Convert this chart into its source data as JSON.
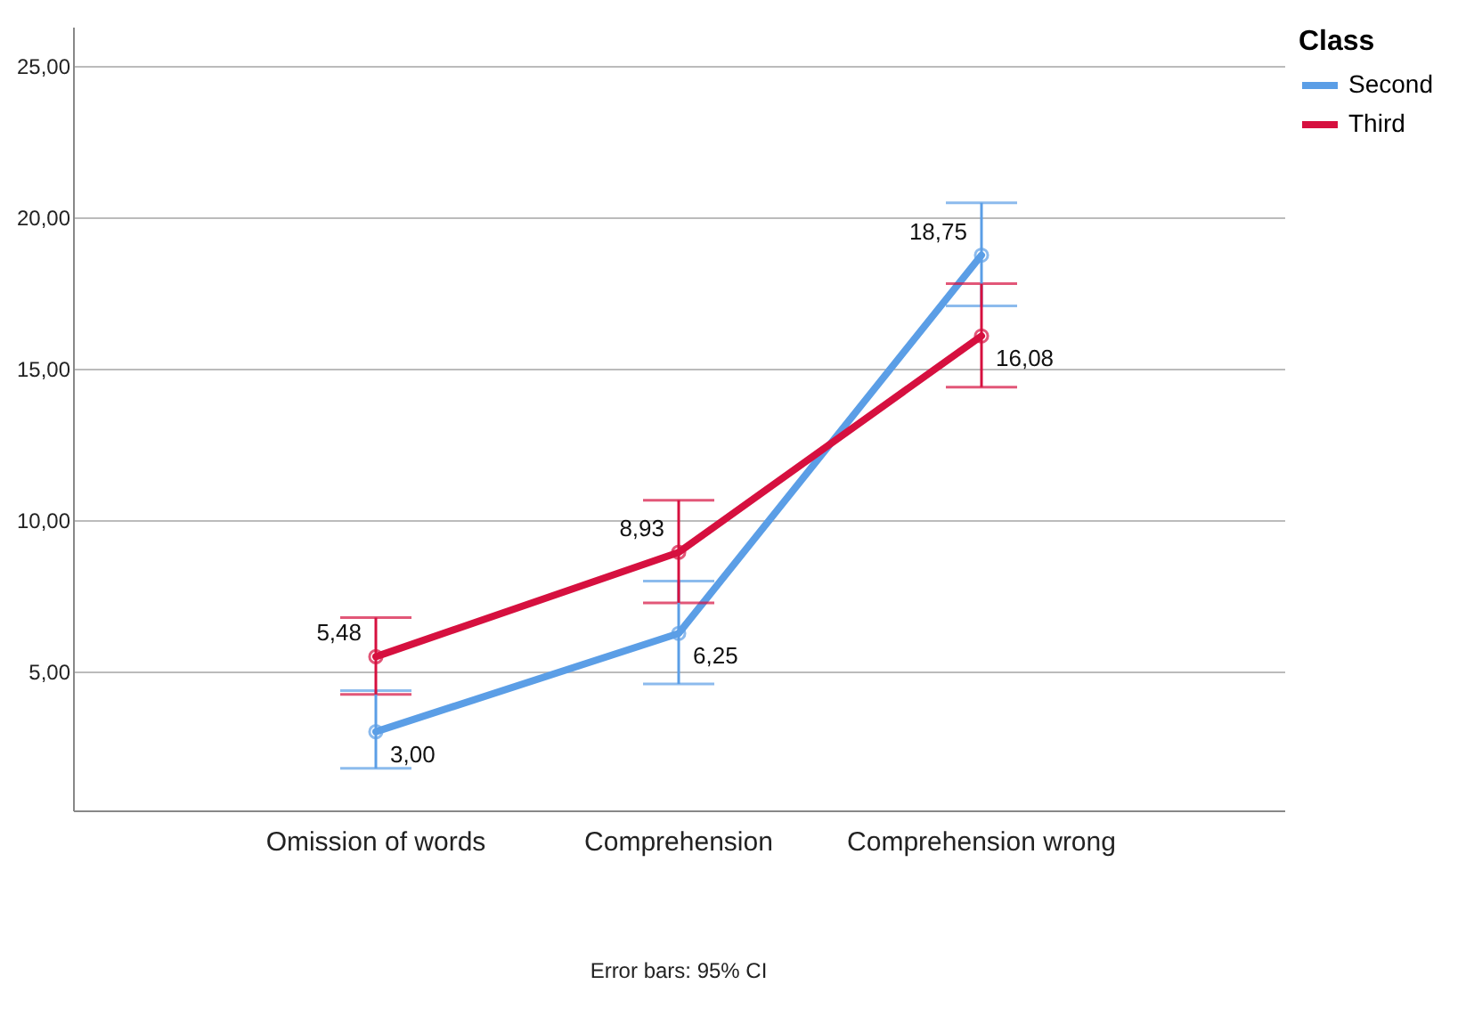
{
  "chart_data": {
    "type": "line",
    "categories": [
      "Omission of words",
      "Comprehension",
      "Comprehension wrong"
    ],
    "series": [
      {
        "name": "Second",
        "color": "#5b9ee6",
        "values": [
          3.0,
          6.25,
          18.75
        ],
        "value_labels": [
          "3,00",
          "6,25",
          "18,75"
        ],
        "errors": [
          [
            1.79,
            4.36
          ],
          [
            4.58,
            7.98
          ],
          [
            17.07,
            20.48
          ]
        ]
      },
      {
        "name": "Third",
        "color": "#d6103f",
        "values": [
          5.48,
          8.93,
          16.08
        ],
        "value_labels": [
          "5,48",
          "8,93",
          "16,08"
        ],
        "errors": [
          [
            4.23,
            6.77
          ],
          [
            7.26,
            10.65
          ],
          [
            14.39,
            17.81
          ]
        ]
      }
    ],
    "ylim": [
      0.4,
      26.3
    ],
    "yticks": [
      {
        "value": 5,
        "label": "5,00"
      },
      {
        "value": 10,
        "label": "10,00"
      },
      {
        "value": 15,
        "label": "15,00"
      },
      {
        "value": 20,
        "label": "20,00"
      },
      {
        "value": 25,
        "label": "25,00"
      }
    ],
    "legend_title": "Class",
    "legend": "top right",
    "grid": "y",
    "marker": "circle",
    "line_style": "solid",
    "annotations": [
      "Error bars: 95% CI"
    ]
  }
}
